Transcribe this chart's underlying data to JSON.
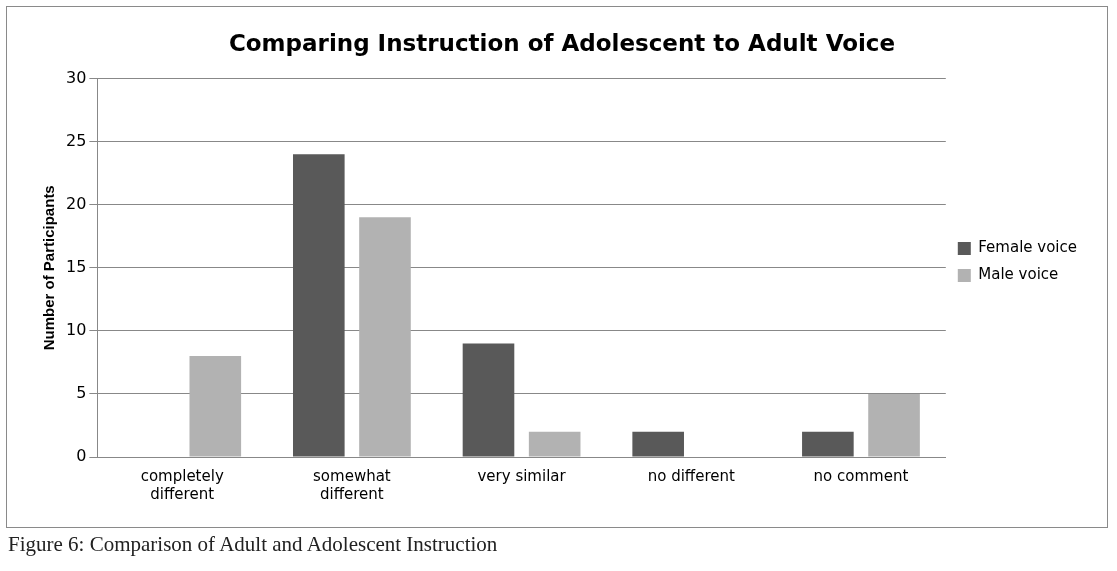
{
  "chart_data": {
    "type": "bar",
    "title": "Comparing Instruction of Adolescent to Adult Voice",
    "ylabel": "Number of Participants",
    "categories": [
      "completely different",
      "somewhat different",
      "very similar",
      "no different",
      "no comment"
    ],
    "series": [
      {
        "name": "Female voice",
        "color": "#595959",
        "values": [
          0,
          24,
          9,
          2,
          2
        ]
      },
      {
        "name": "Male voice",
        "color": "#b2b2b2",
        "values": [
          8,
          19,
          2,
          0,
          5
        ]
      }
    ],
    "ylim": [
      0,
      30
    ],
    "yticks": [
      0,
      5,
      10,
      15,
      20,
      25,
      30
    ],
    "grid": "y",
    "legend": "right",
    "annotations": [
      "Figure 6: Comparison of Adult and Adolescent Instruction"
    ]
  }
}
